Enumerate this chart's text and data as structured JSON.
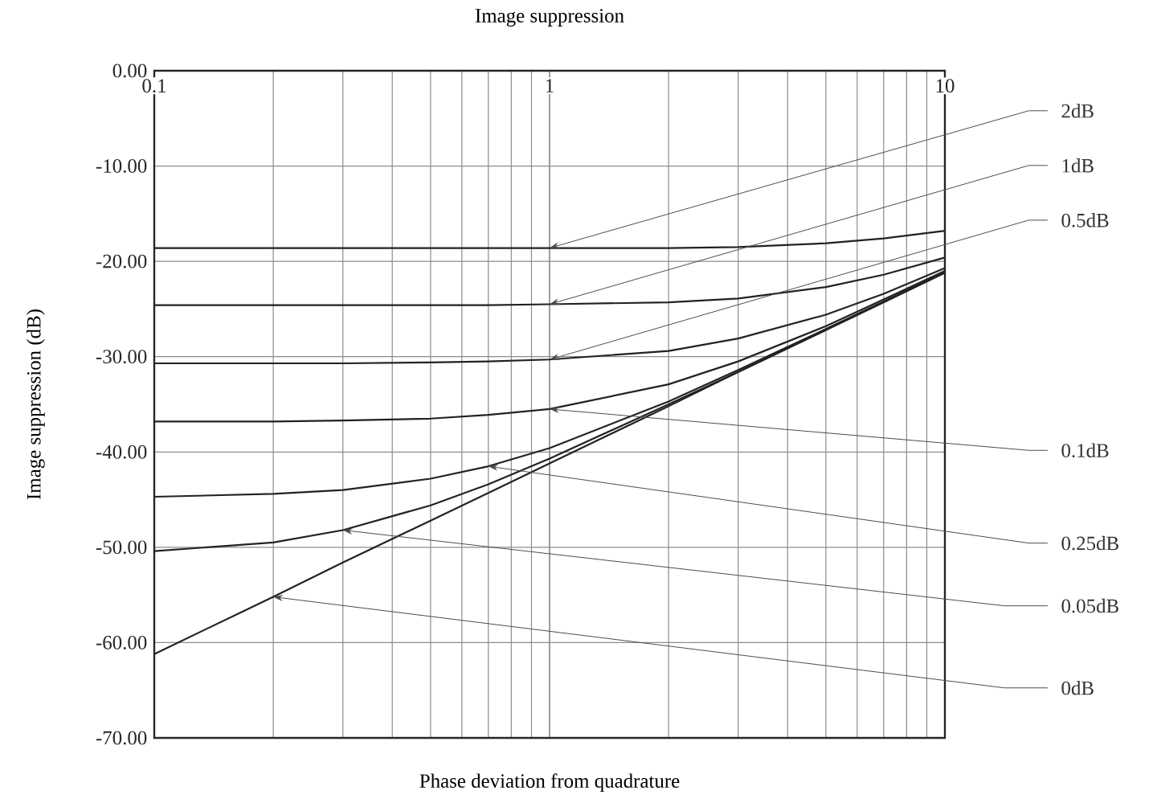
{
  "chart_data": {
    "type": "line",
    "title": "Image suppression",
    "xlabel": "Phase deviation from quadrature",
    "ylabel": "Image suppression (dB)",
    "x": [
      0.1,
      0.2,
      0.3,
      0.5,
      0.7,
      1,
      2,
      3,
      5,
      7,
      10
    ],
    "series": [
      {
        "name": "2dB",
        "color": "#222222",
        "values": [
          -18.6,
          -18.6,
          -18.6,
          -18.6,
          -18.6,
          -18.6,
          -18.6,
          -18.5,
          -18.1,
          -17.6,
          -16.8
        ]
      },
      {
        "name": "1dB",
        "color": "#222222",
        "values": [
          -24.6,
          -24.6,
          -24.6,
          -24.6,
          -24.6,
          -24.5,
          -24.3,
          -23.9,
          -22.7,
          -21.4,
          -19.6
        ]
      },
      {
        "name": "0.5dB",
        "color": "#222222",
        "values": [
          -30.7,
          -30.7,
          -30.7,
          -30.6,
          -30.5,
          -30.3,
          -29.4,
          -28.1,
          -25.6,
          -23.4,
          -20.7
        ]
      },
      {
        "name": "0.1dB",
        "color": "#222222",
        "values": [
          -36.8,
          -36.8,
          -36.7,
          -36.5,
          -36.1,
          -35.5,
          -32.9,
          -30.5,
          -26.8,
          -24.0,
          -21.0
        ]
      },
      {
        "name": "0.25dB",
        "color": "#222222",
        "values": [
          -44.7,
          -44.4,
          -44.0,
          -42.8,
          -41.5,
          -39.6,
          -34.7,
          -31.4,
          -27.1,
          -24.2,
          -21.1
        ]
      },
      {
        "name": "0.05dB",
        "color": "#222222",
        "values": [
          -50.4,
          -49.5,
          -48.2,
          -45.6,
          -43.4,
          -40.7,
          -35.0,
          -31.6,
          -27.2,
          -24.3,
          -21.2
        ]
      },
      {
        "name": "0dB",
        "color": "#222222",
        "values": [
          -61.2,
          -55.2,
          -51.6,
          -47.2,
          -44.3,
          -41.2,
          -35.2,
          -31.6,
          -27.2,
          -24.3,
          -21.2
        ]
      }
    ],
    "xlim": [
      0.1,
      10
    ],
    "ylim": [
      -70,
      0
    ],
    "xticks": [
      0.1,
      1,
      10
    ],
    "yticks": [
      {
        "value": 0,
        "label": "0.00"
      },
      {
        "value": -10,
        "label": "-10.00"
      },
      {
        "value": -20,
        "label": "-20.00"
      },
      {
        "value": -30,
        "label": "-30.00"
      },
      {
        "value": -40,
        "label": "-40.00"
      },
      {
        "value": -50,
        "label": "-50.00"
      },
      {
        "value": -60,
        "label": "-60.00"
      },
      {
        "value": -70,
        "label": "-70.00"
      }
    ],
    "log": "x",
    "grid": true,
    "marker": "none",
    "line_style": "solid"
  }
}
